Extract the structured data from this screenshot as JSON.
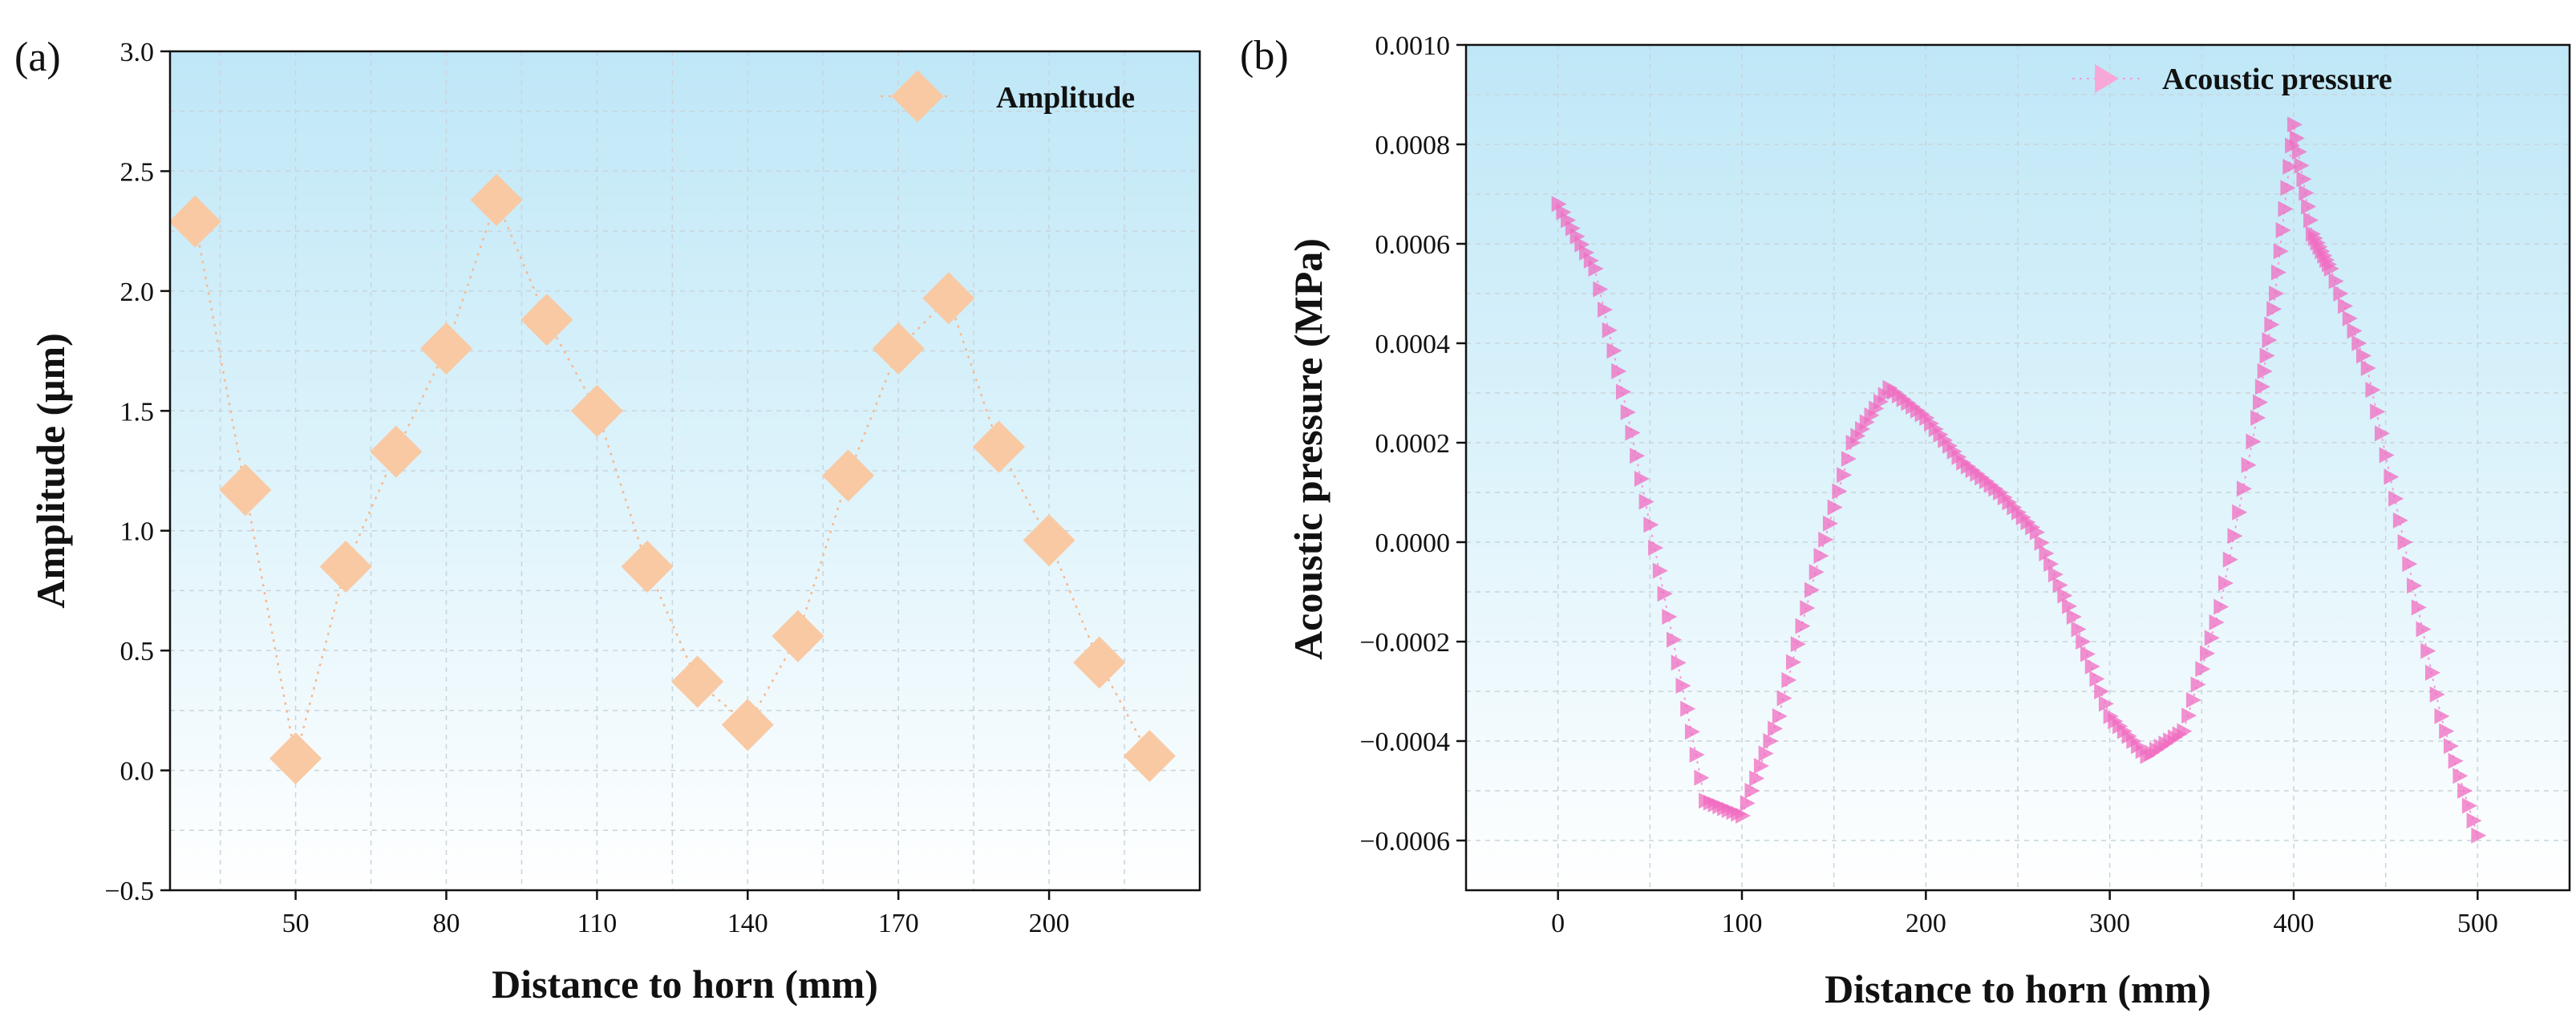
{
  "chart_data": [
    {
      "type": "scatter",
      "panel_label": "(a)",
      "xlabel": "Distance to horn (mm)",
      "ylabel": "Amplitude (μm)",
      "xlim": [
        25,
        230
      ],
      "ylim": [
        -0.5,
        3.0
      ],
      "xticks": [
        50,
        80,
        110,
        140,
        170,
        200
      ],
      "yticks": [
        -0.5,
        0.0,
        0.5,
        1.0,
        1.5,
        2.0,
        2.5,
        3.0
      ],
      "ytick_labels": [
        "−0.5",
        "0.0",
        "0.5",
        "1.0",
        "1.5",
        "2.0",
        "2.5",
        "3.0"
      ],
      "grid": true,
      "legend": "top-right",
      "marker": "diamond",
      "color": "#f9c9a3",
      "series": [
        {
          "name": "Amplitude",
          "x": [
            30,
            40,
            50,
            60,
            70,
            80,
            90,
            100,
            110,
            120,
            130,
            140,
            150,
            160,
            170,
            180,
            190,
            200,
            210,
            220
          ],
          "y": [
            2.29,
            1.17,
            0.05,
            0.85,
            1.33,
            1.76,
            2.38,
            1.88,
            1.5,
            0.85,
            0.37,
            0.19,
            0.56,
            1.23,
            1.76,
            1.97,
            1.35,
            0.96,
            0.45,
            0.06
          ]
        }
      ]
    },
    {
      "type": "scatter",
      "panel_label": "(b)",
      "xlabel": "Distance to horn (mm)",
      "ylabel": "Acoustic pressure (MPa)",
      "xlim": [
        -50,
        550
      ],
      "ylim": [
        -0.0007,
        0.001
      ],
      "xticks": [
        0,
        100,
        200,
        300,
        400,
        500
      ],
      "yticks": [
        -0.0006,
        -0.0004,
        -0.0002,
        0.0,
        0.0002,
        0.0004,
        0.0006,
        0.0008,
        0.001
      ],
      "ytick_labels": [
        "−0.0006",
        "−0.0004",
        "−0.0002",
        "0.0000",
        "0.0002",
        "0.0004",
        "0.0006",
        "0.0008",
        "0.0010"
      ],
      "grid": true,
      "legend": "top-right",
      "marker": "triangle-right",
      "color": "#f06cc0",
      "series": [
        {
          "name": "Acoustic pressure",
          "x": [
            0,
            20,
            40,
            60,
            80,
            100,
            120,
            140,
            160,
            180,
            200,
            220,
            240,
            260,
            280,
            300,
            320,
            340,
            360,
            380,
            390,
            400,
            410,
            420,
            440,
            460,
            480,
            500
          ],
          "y": [
            0.00068,
            0.00055,
            0.00022,
            -0.00015,
            -0.00052,
            -0.00055,
            -0.00035,
            -6e-05,
            0.0002,
            0.00031,
            0.00025,
            0.00016,
            0.0001,
            2e-05,
            -0.00015,
            -0.00035,
            -0.00043,
            -0.00038,
            -0.00013,
            0.00025,
            0.0005,
            0.00084,
            0.00062,
            0.00055,
            0.00035,
            0.0,
            -0.00035,
            -0.00059
          ]
        }
      ]
    }
  ]
}
